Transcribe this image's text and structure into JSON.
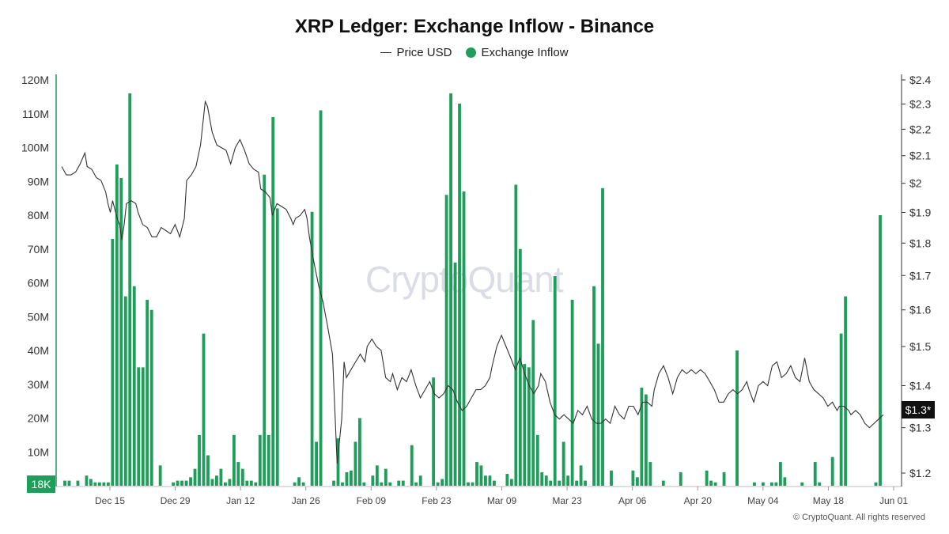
{
  "header": {
    "title": "XRP Ledger: Exchange Inflow - Binance",
    "legend": [
      {
        "label": "Price USD",
        "color": "#333333",
        "kind": "line"
      },
      {
        "label": "Exchange Inflow",
        "color": "#1f9d5a",
        "kind": "dot"
      }
    ]
  },
  "watermark": "CryptoQuant",
  "copyright": "© CryptoQuant. All rights reserved",
  "badges": {
    "left_value": "18K",
    "right_value": "$1.3*"
  },
  "chart_data": {
    "type": "bar",
    "title": "XRP Ledger: Exchange Inflow - Binance",
    "x_tick_labels": [
      "Dec 15",
      "Dec 29",
      "Jan 12",
      "Jan 26",
      "Feb 09",
      "Feb 23",
      "Mar 09",
      "Mar 23",
      "Apr 06",
      "Apr 20",
      "May 04",
      "May 18",
      "Jun 01"
    ],
    "y_left": {
      "ticks": [
        "10M",
        "20M",
        "30M",
        "40M",
        "50M",
        "60M",
        "70M",
        "80M",
        "90M",
        "100M",
        "110M",
        "120M"
      ],
      "range": [
        0,
        120000000
      ]
    },
    "y_right": {
      "ticks": [
        "$1.2",
        "$1.3",
        "$1.4",
        "$1.5",
        "$1.6",
        "$1.7",
        "$1.8",
        "$1.9",
        "$2",
        "$2.1",
        "$2.2",
        "$2.3",
        "$2.4"
      ],
      "scale": "log",
      "range": [
        1.18,
        2.4
      ]
    },
    "series": [
      {
        "name": "Exchange Inflow",
        "type": "bar",
        "color": "#1f9d5a",
        "values": [
          1500000,
          1500000,
          0,
          1500000,
          0,
          3000000,
          2000000,
          1000000,
          1000000,
          1000000,
          1000000,
          73000000,
          95000000,
          91000000,
          56000000,
          116000000,
          59000000,
          35000000,
          35000000,
          55000000,
          52000000,
          0,
          6000000,
          0,
          0,
          1000000,
          1500000,
          1500000,
          1500000,
          2500000,
          5000000,
          15000000,
          45000000,
          9000000,
          2000000,
          3000000,
          5000000,
          1000000,
          2000000,
          15000000,
          7000000,
          5000000,
          1500000,
          1500000,
          1000000,
          15000000,
          92000000,
          15000000,
          109000000,
          82000000,
          0,
          0,
          0,
          1000000,
          2500000,
          1000000,
          0,
          81000000,
          13000000,
          111000000,
          0,
          0,
          1500000,
          14000000,
          1000000,
          4000000,
          4500000,
          13000000,
          20000000,
          1000000,
          0,
          3000000,
          6000000,
          1000000,
          5000000,
          1000000,
          0,
          1500000,
          1500000,
          0,
          12000000,
          1000000,
          3000000,
          0,
          0,
          32000000,
          1000000,
          2000000,
          86000000,
          116000000,
          66000000,
          113000000,
          87000000,
          1000000,
          1000000,
          7000000,
          6000000,
          3000000,
          3000000,
          1500000,
          0,
          0,
          3500000,
          2000000,
          89000000,
          70000000,
          36000000,
          35000000,
          49000000,
          15000000,
          4000000,
          3000000,
          1500000,
          62000000,
          1500000,
          13000000,
          3000000,
          55000000,
          1500000,
          6000000,
          1500000,
          0,
          59000000,
          42000000,
          88000000,
          0,
          4500000,
          0,
          0,
          0,
          0,
          4500000,
          2500000,
          29000000,
          27000000,
          7000000,
          0,
          0,
          1500000,
          0,
          0,
          0,
          4000000,
          0,
          0,
          0,
          0,
          0,
          4500000,
          1500000,
          1000000,
          0,
          4000000,
          0,
          0,
          40000000,
          0,
          0,
          0,
          1000000,
          0,
          1000000,
          0,
          1000000,
          1000000,
          7000000,
          2500000,
          0,
          0,
          0,
          1000000,
          0,
          0,
          7000000,
          1000000,
          0,
          0,
          8500000,
          0,
          45000000,
          56000000,
          0,
          0,
          0,
          0,
          0,
          0,
          1000000,
          80000000
        ]
      },
      {
        "name": "Price USD",
        "type": "line",
        "color": "#333333",
        "points": [
          [
            0,
            2.06
          ],
          [
            2,
            2.03
          ],
          [
            4,
            2.03
          ],
          [
            6,
            2.04
          ],
          [
            8,
            2.07
          ],
          [
            10,
            2.11
          ],
          [
            11,
            2.06
          ],
          [
            13,
            2.05
          ],
          [
            15,
            2.02
          ],
          [
            17,
            2.01
          ],
          [
            19,
            1.97
          ],
          [
            20,
            1.93
          ],
          [
            21,
            1.9
          ],
          [
            22,
            1.94
          ],
          [
            24,
            1.88
          ],
          [
            25,
            1.86
          ],
          [
            26,
            1.81
          ],
          [
            27,
            1.86
          ],
          [
            28,
            1.93
          ],
          [
            30,
            1.94
          ],
          [
            32,
            1.93
          ],
          [
            33,
            1.9
          ],
          [
            35,
            1.86
          ],
          [
            37,
            1.85
          ],
          [
            39,
            1.82
          ],
          [
            41,
            1.82
          ],
          [
            43,
            1.85
          ],
          [
            45,
            1.84
          ],
          [
            47,
            1.83
          ],
          [
            49,
            1.86
          ],
          [
            51,
            1.82
          ],
          [
            53,
            1.88
          ],
          [
            54,
            2.01
          ],
          [
            56,
            2.03
          ],
          [
            58,
            2.06
          ],
          [
            60,
            2.14
          ],
          [
            62,
            2.31
          ],
          [
            63,
            2.29
          ],
          [
            65,
            2.19
          ],
          [
            67,
            2.14
          ],
          [
            69,
            2.13
          ],
          [
            71,
            2.12
          ],
          [
            73,
            2.07
          ],
          [
            75,
            2.13
          ],
          [
            77,
            2.16
          ],
          [
            79,
            2.12
          ],
          [
            81,
            2.07
          ],
          [
            83,
            2.05
          ],
          [
            85,
            2.04
          ],
          [
            86,
            1.98
          ],
          [
            88,
            1.97
          ],
          [
            90,
            1.95
          ],
          [
            91,
            1.89
          ],
          [
            93,
            1.93
          ],
          [
            95,
            1.92
          ],
          [
            97,
            1.91
          ],
          [
            99,
            1.88
          ],
          [
            100,
            1.86
          ],
          [
            101,
            1.88
          ],
          [
            103,
            1.89
          ],
          [
            105,
            1.91
          ],
          [
            106,
            1.88
          ],
          [
            107,
            1.82
          ],
          [
            109,
            1.74
          ],
          [
            111,
            1.67
          ],
          [
            113,
            1.62
          ],
          [
            115,
            1.55
          ],
          [
            117,
            1.48
          ],
          [
            119,
            1.22
          ],
          [
            121,
            1.32
          ],
          [
            122,
            1.46
          ],
          [
            123,
            1.42
          ],
          [
            125,
            1.44
          ],
          [
            127,
            1.46
          ],
          [
            129,
            1.48
          ],
          [
            131,
            1.46
          ],
          [
            132,
            1.5
          ],
          [
            134,
            1.52
          ],
          [
            136,
            1.5
          ],
          [
            138,
            1.49
          ],
          [
            140,
            1.42
          ],
          [
            142,
            1.41
          ],
          [
            143,
            1.43
          ],
          [
            145,
            1.39
          ],
          [
            147,
            1.42
          ],
          [
            149,
            1.41
          ],
          [
            151,
            1.44
          ],
          [
            153,
            1.4
          ],
          [
            155,
            1.37
          ],
          [
            157,
            1.39
          ],
          [
            159,
            1.41
          ],
          [
            161,
            1.38
          ],
          [
            163,
            1.37
          ],
          [
            165,
            1.38
          ],
          [
            167,
            1.4
          ],
          [
            169,
            1.39
          ],
          [
            171,
            1.36
          ],
          [
            173,
            1.34
          ],
          [
            175,
            1.35
          ],
          [
            177,
            1.37
          ],
          [
            179,
            1.39
          ],
          [
            181,
            1.39
          ],
          [
            183,
            1.4
          ],
          [
            185,
            1.42
          ],
          [
            186,
            1.45
          ],
          [
            188,
            1.5
          ],
          [
            190,
            1.53
          ],
          [
            192,
            1.5
          ],
          [
            194,
            1.47
          ],
          [
            196,
            1.44
          ],
          [
            198,
            1.47
          ],
          [
            200,
            1.43
          ],
          [
            202,
            1.4
          ],
          [
            204,
            1.38
          ],
          [
            206,
            1.4
          ],
          [
            207,
            1.43
          ],
          [
            209,
            1.41
          ],
          [
            211,
            1.36
          ],
          [
            213,
            1.33
          ],
          [
            215,
            1.32
          ],
          [
            217,
            1.33
          ],
          [
            219,
            1.32
          ],
          [
            221,
            1.31
          ],
          [
            223,
            1.34
          ],
          [
            225,
            1.33
          ],
          [
            227,
            1.35
          ],
          [
            229,
            1.32
          ],
          [
            231,
            1.31
          ],
          [
            233,
            1.31
          ],
          [
            235,
            1.32
          ],
          [
            237,
            1.31
          ],
          [
            239,
            1.35
          ],
          [
            241,
            1.33
          ],
          [
            243,
            1.32
          ],
          [
            245,
            1.35
          ],
          [
            247,
            1.35
          ],
          [
            249,
            1.33
          ],
          [
            251,
            1.36
          ],
          [
            253,
            1.36
          ],
          [
            255,
            1.35
          ],
          [
            256,
            1.39
          ],
          [
            258,
            1.43
          ],
          [
            260,
            1.45
          ],
          [
            262,
            1.42
          ],
          [
            264,
            1.38
          ],
          [
            266,
            1.42
          ],
          [
            268,
            1.44
          ],
          [
            270,
            1.43
          ],
          [
            272,
            1.44
          ],
          [
            274,
            1.43
          ],
          [
            276,
            1.44
          ],
          [
            278,
            1.43
          ],
          [
            280,
            1.41
          ],
          [
            282,
            1.39
          ],
          [
            284,
            1.36
          ],
          [
            286,
            1.36
          ],
          [
            288,
            1.38
          ],
          [
            290,
            1.39
          ],
          [
            292,
            1.38
          ],
          [
            294,
            1.39
          ],
          [
            296,
            1.41
          ],
          [
            297,
            1.39
          ],
          [
            299,
            1.36
          ],
          [
            301,
            1.4
          ],
          [
            303,
            1.41
          ],
          [
            305,
            1.4
          ],
          [
            307,
            1.45
          ],
          [
            309,
            1.46
          ],
          [
            311,
            1.42
          ],
          [
            313,
            1.43
          ],
          [
            315,
            1.45
          ],
          [
            317,
            1.42
          ],
          [
            319,
            1.41
          ],
          [
            321,
            1.47
          ],
          [
            323,
            1.41
          ],
          [
            325,
            1.39
          ],
          [
            327,
            1.38
          ],
          [
            329,
            1.37
          ],
          [
            331,
            1.35
          ],
          [
            333,
            1.36
          ],
          [
            335,
            1.34
          ],
          [
            336,
            1.35
          ],
          [
            338,
            1.35
          ],
          [
            340,
            1.34
          ],
          [
            341,
            1.33
          ],
          [
            343,
            1.34
          ],
          [
            345,
            1.33
          ],
          [
            347,
            1.31
          ],
          [
            349,
            1.3
          ],
          [
            351,
            1.31
          ],
          [
            353,
            1.32
          ],
          [
            355,
            1.33
          ]
        ]
      }
    ],
    "grid": false,
    "legend": "top-center"
  }
}
